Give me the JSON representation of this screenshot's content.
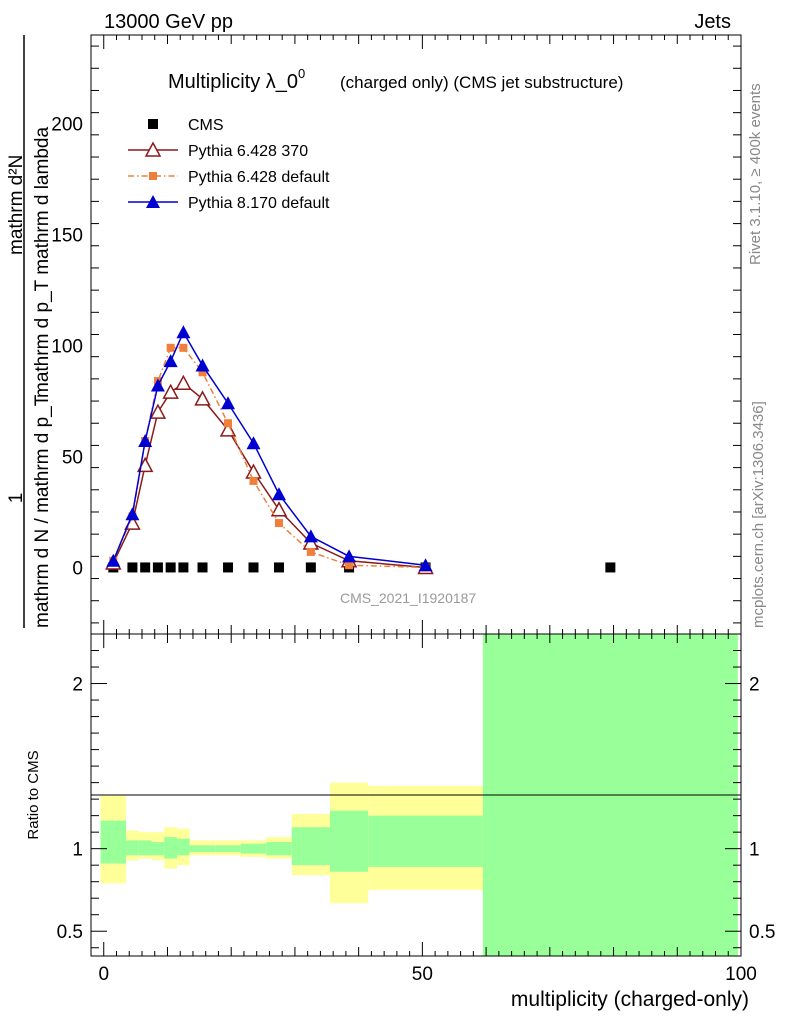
{
  "header": {
    "left": "13000 GeV pp",
    "right": "Jets"
  },
  "side_labels": {
    "rivet": "Rivet 3.1.10, ≥ 400k events",
    "mcplots": "mcplots.cern.ch [arXiv:1306.3436]"
  },
  "watermark": "CMS_2021_I1920187",
  "chart_data": [
    {
      "type": "line",
      "title": "Multiplicity λ_0^0",
      "title_main": "Multiplicity λ_0",
      "title_sup": "0",
      "subtitle": "(charged only) (CMS jet substructure)",
      "ylabel_numerator": "1",
      "ylabel_num_upper": "mathrm d²N",
      "ylabel_num_lower": "mathrm d p_T mathrm d lambda",
      "ylabel_denominator": "mathrm d N / mathrm d p_T",
      "ylim": [
        -30,
        240
      ],
      "yticks": [
        0,
        50,
        100,
        150,
        200
      ],
      "xlim": [
        -2,
        100
      ],
      "legend_position": "top-left",
      "series": [
        {
          "name": "CMS",
          "color": "#000000",
          "marker": "square",
          "style": "markers",
          "x": [
            1.5,
            4.5,
            6.5,
            8.5,
            10.5,
            12.5,
            15.5,
            19.5,
            23.5,
            27.5,
            32.5,
            38.5,
            50.5,
            79.5
          ],
          "y": [
            0,
            0,
            0,
            0,
            0,
            0,
            0,
            0,
            0,
            0,
            0,
            0,
            0,
            0
          ]
        },
        {
          "name": "Pythia 6.428 370",
          "color": "#8b1a1a",
          "marker": "open-triangle",
          "style": "solid",
          "x": [
            1.5,
            4.5,
            6.5,
            8.5,
            10.5,
            12.5,
            15.5,
            19.5,
            23.5,
            27.5,
            32.5,
            38.5,
            50.5
          ],
          "y": [
            2,
            20,
            46,
            70,
            79,
            83,
            76,
            62,
            43,
            26,
            11,
            3,
            0
          ]
        },
        {
          "name": "Pythia 6.428 default",
          "color": "#f07f3c",
          "marker": "square",
          "style": "dashdot",
          "x": [
            1.5,
            4.5,
            6.5,
            8.5,
            10.5,
            12.5,
            15.5,
            19.5,
            23.5,
            27.5,
            32.5,
            38.5,
            50.5
          ],
          "y": [
            3,
            23,
            57,
            84,
            99,
            99,
            88,
            65,
            39,
            20,
            7,
            1,
            0
          ]
        },
        {
          "name": "Pythia 8.170 default",
          "color": "#0000d0",
          "marker": "triangle",
          "style": "solid",
          "x": [
            1.5,
            4.5,
            6.5,
            8.5,
            10.5,
            12.5,
            15.5,
            19.5,
            23.5,
            27.5,
            32.5,
            38.5,
            50.5
          ],
          "y": [
            3,
            24,
            57,
            82,
            93,
            106,
            91,
            74,
            56,
            33,
            14,
            5,
            1
          ]
        }
      ]
    },
    {
      "type": "area",
      "ylabel": "Ratio to CMS",
      "xlabel": "multiplicity (charged-only)",
      "xlim": [
        -2,
        100
      ],
      "xticks": [
        0,
        50,
        100
      ],
      "ylim": [
        0.35,
        2.3
      ],
      "yticks": [
        0.5,
        1,
        2
      ],
      "ytick_labels": [
        "0.5",
        "1",
        "2"
      ],
      "bands": {
        "bins": [
          [
            -0.5,
            3.5
          ],
          [
            3.5,
            5.5
          ],
          [
            5.5,
            7.5
          ],
          [
            7.5,
            9.5
          ],
          [
            9.5,
            11.5
          ],
          [
            11.5,
            13.5
          ],
          [
            13.5,
            17.5
          ],
          [
            17.5,
            21.5
          ],
          [
            21.5,
            25.5
          ],
          [
            25.5,
            29.5
          ],
          [
            29.5,
            35.5
          ],
          [
            35.5,
            41.5
          ],
          [
            41.5,
            59.5
          ],
          [
            59.5,
            99.5
          ]
        ],
        "yellow_low": [
          0.79,
          0.93,
          0.94,
          0.93,
          0.88,
          0.9,
          0.96,
          0.96,
          0.95,
          0.94,
          0.84,
          0.67,
          0.75,
          0.35
        ],
        "yellow_high": [
          1.32,
          1.11,
          1.1,
          1.1,
          1.13,
          1.12,
          1.05,
          1.05,
          1.05,
          1.07,
          1.21,
          1.4,
          1.38,
          2.3
        ],
        "green_low": [
          0.91,
          0.96,
          0.96,
          0.96,
          0.94,
          0.96,
          0.98,
          0.98,
          0.97,
          0.96,
          0.9,
          0.86,
          0.89,
          0.35
        ],
        "green_high": [
          1.17,
          1.05,
          1.05,
          1.04,
          1.07,
          1.06,
          1.02,
          1.02,
          1.03,
          1.04,
          1.13,
          1.23,
          1.2,
          2.3
        ]
      }
    }
  ]
}
